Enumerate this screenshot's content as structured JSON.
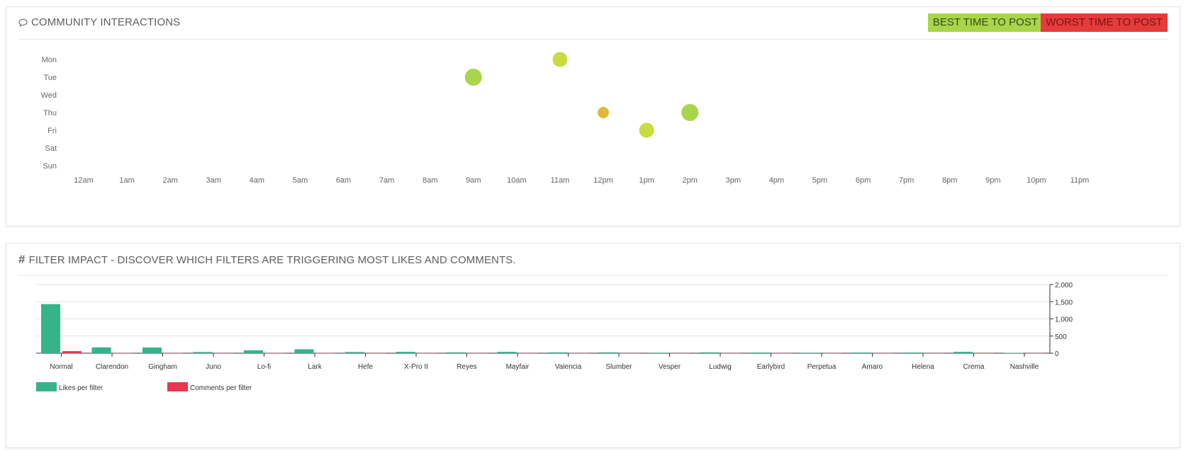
{
  "interactions": {
    "title": "COMMUNITY INTERACTIONS",
    "best_label": "BEST TIME TO POST",
    "worst_label": "WORST TIME TO POST",
    "colors": {
      "best": "#a9d54a",
      "worst": "#e53b3c",
      "good": "#c9db3e",
      "average": "#e0b73a"
    }
  },
  "filters": {
    "title": "FILTER IMPACT - DISCOVER WHICH FILTERS ARE TRIGGERING MOST LIKES AND COMMENTS."
  },
  "chart_data": [
    {
      "type": "scatter",
      "title": "COMMUNITY INTERACTIONS",
      "x_categories": [
        "12am",
        "1am",
        "2am",
        "3am",
        "4am",
        "5am",
        "6am",
        "7am",
        "8am",
        "9am",
        "10am",
        "11am",
        "12pm",
        "1pm",
        "2pm",
        "3pm",
        "4pm",
        "5pm",
        "6pm",
        "7pm",
        "8pm",
        "9pm",
        "10pm",
        "11pm"
      ],
      "y_categories": [
        "Mon",
        "Tue",
        "Wed",
        "Thu",
        "Fri",
        "Sat",
        "Sun"
      ],
      "points": [
        {
          "x": "9am",
          "y": "Tue",
          "level": "best",
          "size": 3,
          "color": "#a9d54a"
        },
        {
          "x": "11am",
          "y": "Mon",
          "level": "good",
          "size": 2,
          "color": "#c9db3e"
        },
        {
          "x": "12pm",
          "y": "Thu",
          "level": "average",
          "size": 1,
          "color": "#e0b73a"
        },
        {
          "x": "1pm",
          "y": "Fri",
          "level": "good",
          "size": 2,
          "color": "#c9db3e"
        },
        {
          "x": "2pm",
          "y": "Thu",
          "level": "best",
          "size": 3,
          "color": "#a9d54a"
        }
      ],
      "grid": false
    },
    {
      "type": "bar",
      "title": "",
      "categories": [
        "Normal",
        "Clarendon",
        "Gingham",
        "Juno",
        "Lo-fi",
        "Lark",
        "Hefe",
        "X-Pro II",
        "Reyes",
        "Mayfair",
        "Valencia",
        "Slumber",
        "Vesper",
        "Ludwig",
        "Earlybird",
        "Perpetua",
        "Amaro",
        "Helena",
        "Crema",
        "Nashville"
      ],
      "series": [
        {
          "name": "Likes per filter",
          "color": "#35b38a",
          "values": [
            1430,
            170,
            165,
            35,
            85,
            115,
            35,
            40,
            25,
            40,
            25,
            25,
            15,
            25,
            20,
            15,
            20,
            20,
            40,
            10
          ]
        },
        {
          "name": "Comments per filter",
          "color": "#e8374f",
          "values": [
            60,
            5,
            5,
            3,
            5,
            5,
            3,
            3,
            2,
            3,
            2,
            2,
            2,
            2,
            2,
            2,
            2,
            2,
            3,
            1
          ]
        }
      ],
      "ylim": [
        0,
        2000
      ],
      "yticks": [
        "0",
        "500",
        "1,000",
        "1,500",
        "2,000"
      ],
      "y_axis_side": "right",
      "grid": true,
      "legend_position": "bottom-left"
    }
  ]
}
